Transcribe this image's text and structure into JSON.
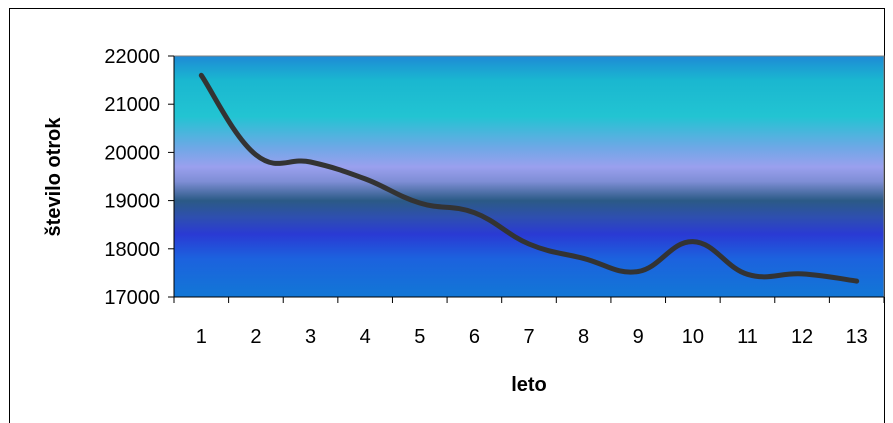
{
  "chart_data": {
    "type": "line",
    "title": "",
    "xlabel": "leto",
    "ylabel": "število otrok",
    "categories": [
      "1",
      "2",
      "3",
      "4",
      "5",
      "6",
      "7",
      "8",
      "9",
      "10",
      "11",
      "12",
      "13"
    ],
    "values": [
      21600,
      19950,
      19800,
      19450,
      18950,
      18750,
      18100,
      17800,
      17530,
      18150,
      17470,
      17480,
      17330
    ],
    "ylim": [
      17000,
      22000
    ],
    "yticks": [
      "17000",
      "18000",
      "19000",
      "20000",
      "21000",
      "22000"
    ],
    "grid": false,
    "legend": "none",
    "line_color": "#333333",
    "background": "gradient"
  }
}
